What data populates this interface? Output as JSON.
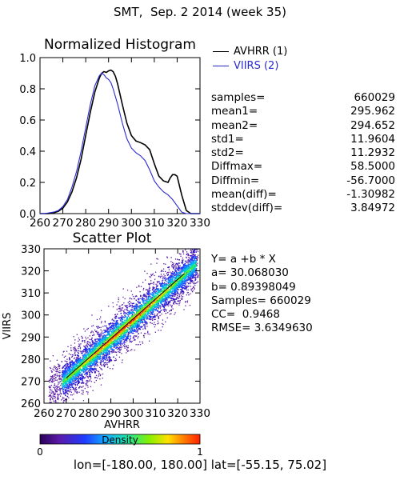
{
  "title": "SMT,  Sep. 2 2014 (week 35)",
  "histogram": {
    "title": "Normalized Histogram",
    "legend": [
      {
        "name": "AVHRR (1)",
        "color": "#000000"
      },
      {
        "name": "VIIRS (2)",
        "color": "#2a2ad0"
      }
    ],
    "stats": [
      {
        "label": "samples=",
        "value": "660029"
      },
      {
        "label": "mean1=",
        "value": "295.962"
      },
      {
        "label": "mean2=",
        "value": "294.652"
      },
      {
        "label": "std1=",
        "value": "11.9604"
      },
      {
        "label": "std2=",
        "value": "11.2932"
      },
      {
        "label": "Diffmax=",
        "value": "58.5000"
      },
      {
        "label": "Diffmin=",
        "value": "-56.7000"
      },
      {
        "label": "mean(diff)=",
        "value": "-1.30982"
      },
      {
        "label": "stddev(diff)=",
        "value": "3.84972"
      }
    ]
  },
  "scatter": {
    "title": "Scatter Plot",
    "fit_lines": [
      "Y= a +b * X",
      "a= 30.068030",
      "b= 0.89398049",
      "",
      "Samples= 660029",
      "CC=  0.9468",
      "RMSE= 3.6349630"
    ]
  },
  "colorbar": {
    "label": "Density",
    "min_label": "0",
    "max_label": "1"
  },
  "footer": "lon=[-180.00, 180.00] lat=[-55.15, 75.02]",
  "chart_data": [
    {
      "type": "line",
      "title": "Normalized Histogram",
      "xlim": [
        260,
        330
      ],
      "ylim": [
        0,
        1
      ],
      "xticks": [
        "260",
        "270",
        "280",
        "290",
        "300",
        "310",
        "320",
        "330"
      ],
      "yticks": [
        "0.0",
        "0.2",
        "0.4",
        "0.6",
        "0.8",
        "1.0"
      ],
      "series": [
        {
          "name": "AVHRR (1)",
          "color": "#000000",
          "x": [
            260,
            262,
            264,
            266,
            268,
            270,
            272,
            274,
            276,
            278,
            280,
            282,
            284,
            286,
            287,
            288,
            289,
            290,
            291,
            292,
            293,
            294,
            296,
            298,
            300,
            302,
            304,
            306,
            308,
            310,
            312,
            314,
            316,
            317,
            318,
            319,
            320,
            322,
            324,
            326,
            328,
            330
          ],
          "y": [
            0.0,
            0.0,
            0.0,
            0.005,
            0.015,
            0.035,
            0.075,
            0.14,
            0.23,
            0.35,
            0.5,
            0.65,
            0.78,
            0.87,
            0.9,
            0.91,
            0.905,
            0.915,
            0.92,
            0.91,
            0.88,
            0.83,
            0.7,
            0.58,
            0.5,
            0.465,
            0.455,
            0.44,
            0.41,
            0.32,
            0.24,
            0.21,
            0.2,
            0.23,
            0.25,
            0.25,
            0.24,
            0.12,
            0.02,
            0.0,
            0.0,
            0.0
          ]
        },
        {
          "name": "VIIRS (2)",
          "color": "#2a2ad0",
          "x": [
            260,
            262,
            264,
            266,
            268,
            270,
            272,
            274,
            276,
            278,
            280,
            282,
            284,
            286,
            287,
            288,
            289,
            290,
            291,
            292,
            294,
            296,
            298,
            300,
            302,
            304,
            306,
            308,
            310,
            312,
            314,
            316,
            318,
            320,
            322,
            324,
            326,
            328,
            330
          ],
          "y": [
            0.0,
            0.0,
            0.005,
            0.01,
            0.02,
            0.045,
            0.09,
            0.17,
            0.27,
            0.4,
            0.55,
            0.7,
            0.82,
            0.885,
            0.9,
            0.89,
            0.87,
            0.86,
            0.84,
            0.8,
            0.7,
            0.58,
            0.48,
            0.42,
            0.39,
            0.37,
            0.34,
            0.28,
            0.21,
            0.17,
            0.14,
            0.12,
            0.09,
            0.05,
            0.01,
            0.0,
            0.0,
            0.0,
            0.0
          ]
        }
      ]
    },
    {
      "type": "scatter",
      "title": "Scatter Plot",
      "xlabel": "AVHRR",
      "ylabel": "VIIRS",
      "xlim": [
        260,
        330
      ],
      "ylim": [
        260,
        330
      ],
      "xticks": [
        "260",
        "270",
        "280",
        "290",
        "300",
        "310",
        "320",
        "330"
      ],
      "yticks": [
        "260",
        "270",
        "280",
        "290",
        "300",
        "310",
        "320",
        "330"
      ],
      "fit": {
        "a": 30.06803,
        "b": 0.89398049
      },
      "samples": 660029,
      "cc": 0.9468,
      "rmse": 3.634963,
      "colorbar": {
        "label": "Density",
        "min": 0,
        "max": 1
      }
    }
  ]
}
